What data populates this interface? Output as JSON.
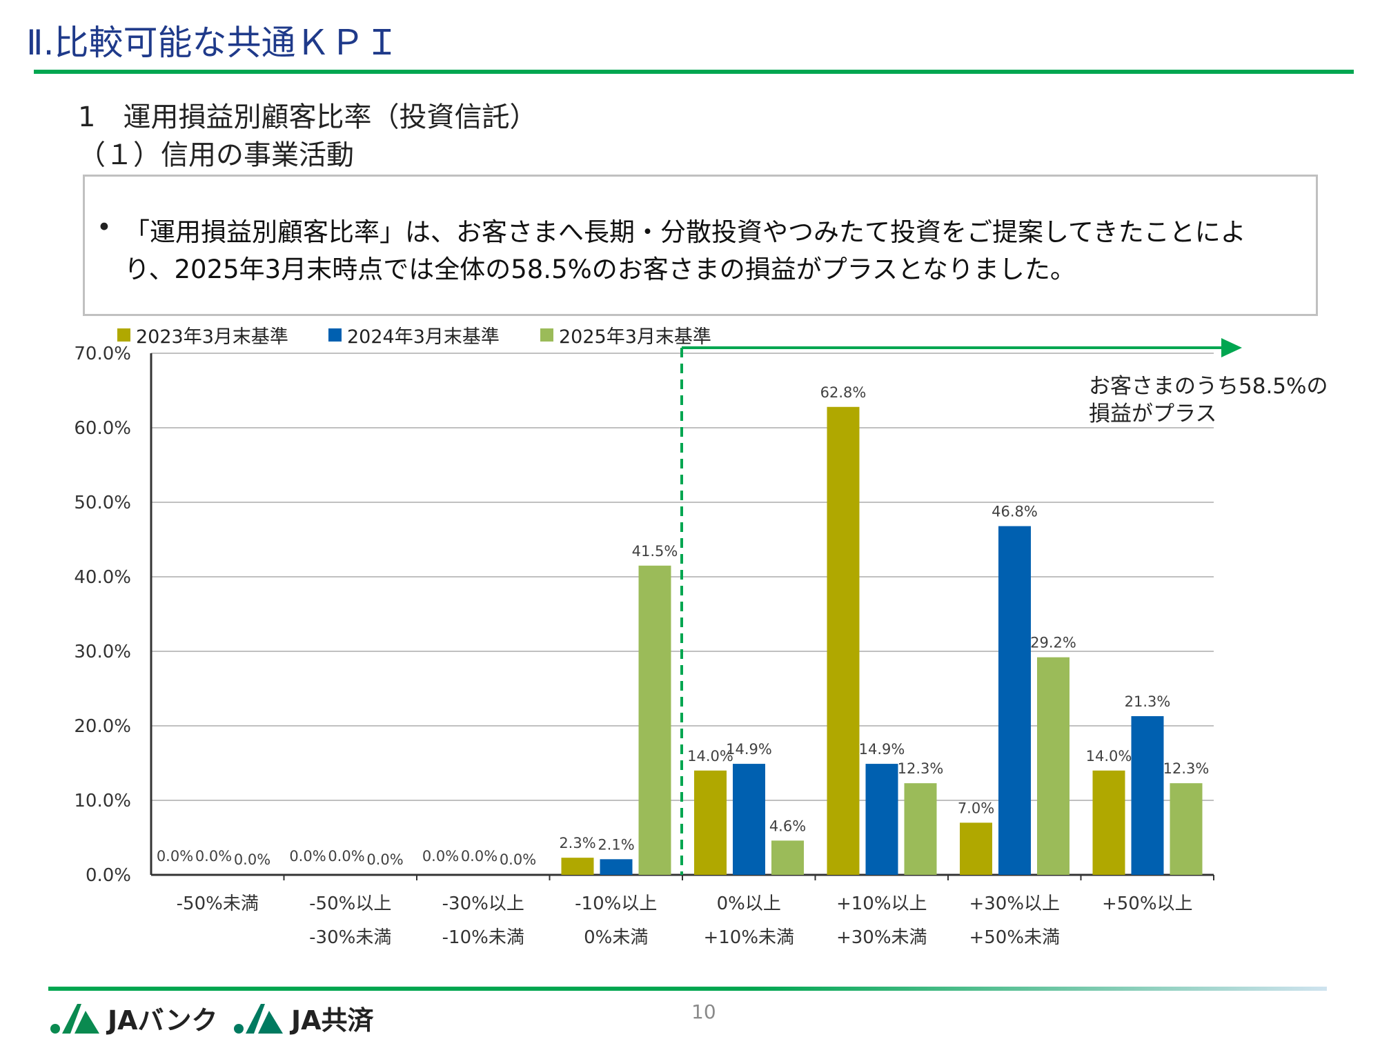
{
  "header": {
    "title": "Ⅱ.比較可能な共通ＫＰＩ"
  },
  "section": {
    "heading": "1　運用損益別顧客比率（投資信託）",
    "subheading": "（１）信用の事業活動"
  },
  "summary": {
    "bullet": "•",
    "lines": [
      "「運用損益別顧客比率」は、お客さまへ長期・分散投資やつみたて投資をご提案してきたことによ",
      "り、2025年3月末時点では全体の58.5%のお客さまの損益がプラスとなりました。"
    ]
  },
  "annotation": {
    "lines": [
      "お客さまのうち58.5%の",
      "損益がプラス"
    ]
  },
  "footer": {
    "page": "10",
    "logos": [
      "JAバンク",
      "JA共済"
    ]
  },
  "colors": {
    "s2023": "#b0a800",
    "s2024": "#0060b0",
    "s2025": "#9bbb59",
    "accent": "#00a650",
    "title": "#1f3a8a"
  },
  "chart_data": {
    "type": "bar",
    "title": "",
    "ylim": [
      0,
      70
    ],
    "yticks": [
      "0.0%",
      "10.0%",
      "20.0%",
      "30.0%",
      "40.0%",
      "50.0%",
      "60.0%",
      "70.0%"
    ],
    "legend_position": "top-left",
    "categories": [
      [
        "-50%未満",
        ""
      ],
      [
        "-50%以上",
        "-30%未満"
      ],
      [
        "-30%以上",
        "-10%未満"
      ],
      [
        "-10%以上",
        "0%未満"
      ],
      [
        "0%以上",
        "+10%未満"
      ],
      [
        "+10%以上",
        "+30%未満"
      ],
      [
        "+30%以上",
        "+50%未満"
      ],
      [
        "+50%以上",
        ""
      ]
    ],
    "series": [
      {
        "name": "2023年3月末基準",
        "values": [
          0.0,
          0.0,
          0.0,
          2.3,
          14.0,
          62.8,
          7.0,
          14.0
        ],
        "labels": [
          "0.0%",
          "0.0%",
          "0.0%",
          "2.3%",
          "14.0%",
          "62.8%",
          "7.0%",
          "14.0%"
        ]
      },
      {
        "name": "2024年3月末基準",
        "values": [
          0.0,
          0.0,
          0.0,
          2.1,
          14.9,
          14.9,
          46.8,
          21.3
        ],
        "labels": [
          "0.0%",
          "0.0%",
          "0.0%",
          "2.1%",
          "14.9%",
          "14.9%",
          "46.8%",
          "21.3%"
        ]
      },
      {
        "name": "2025年3月末基準",
        "values": [
          0.0,
          0.0,
          0.0,
          41.5,
          4.6,
          12.3,
          29.2,
          12.3
        ],
        "labels": [
          "0.0%",
          "0.0%",
          "0.0%",
          "41.5%",
          "4.6%",
          "12.3%",
          "29.2%",
          "12.3%"
        ]
      }
    ]
  }
}
